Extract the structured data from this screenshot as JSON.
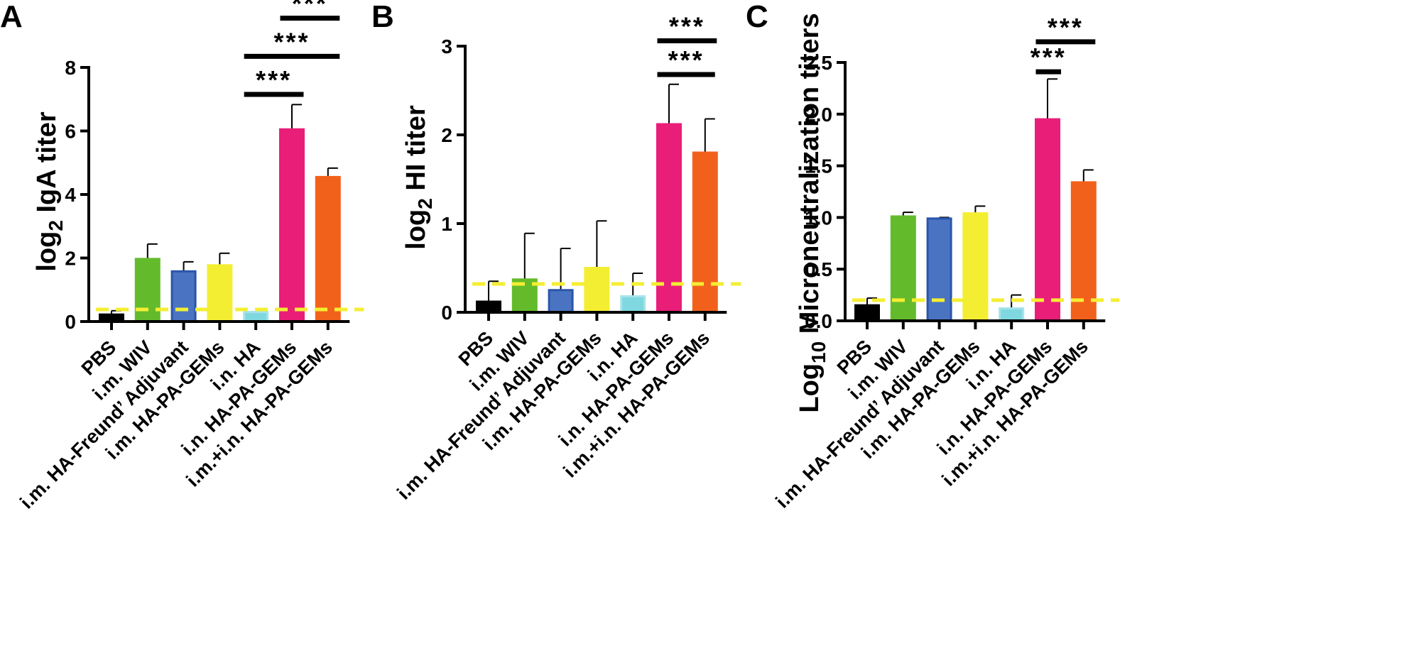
{
  "categories": [
    "PBS",
    "i.m. WIV",
    "i.m. HA-Freund’ Adjuvant",
    "i.m. HA-PA-GEMs",
    "i.n. HA",
    "i.n. HA-PA-GEMs",
    "i.m.+i.n. HA-PA-GEMs"
  ],
  "colors": {
    "bars": [
      "#000000",
      "#63bb2c",
      "#4a74c2",
      "#f4ee32",
      "#7fd8e0",
      "#e91e78",
      "#f2611b"
    ],
    "bar_edges": [
      "#000000",
      "#63bb2c",
      "#2a55aa",
      "#f4ee32",
      "#a5e3ea",
      "#e91e78",
      "#f2611b"
    ],
    "threshold": "#f4ee32",
    "axis": "#000000"
  },
  "chart_data": [
    {
      "type": "bar",
      "panel": "A",
      "ylabel_main": "log",
      "ylabel_sub": "2",
      "ylabel_rest": " IgA titer",
      "ylim": [
        0,
        8
      ],
      "yticks": [
        "0",
        "2",
        "4",
        "6",
        "8"
      ],
      "tick_values": [
        0,
        2,
        4,
        6,
        8
      ],
      "values": [
        0.22,
        1.97,
        1.58,
        1.77,
        0.3,
        6.05,
        4.55
      ],
      "errors": [
        0.12,
        0.47,
        0.3,
        0.38,
        0.1,
        0.78,
        0.28
      ],
      "threshold": 0.38,
      "significance": [
        {
          "label": "***",
          "from": 4,
          "to": 5,
          "y": 7.15
        },
        {
          "label": "***",
          "from": 4,
          "to": 6,
          "y": 8.35
        },
        {
          "label": "***",
          "from": 5,
          "to": 6,
          "y": 9.55
        }
      ]
    },
    {
      "type": "bar",
      "panel": "B",
      "ylabel_main": "log",
      "ylabel_sub": "2",
      "ylabel_rest": " HI titer",
      "ylim": [
        0,
        3
      ],
      "yticks": [
        "0",
        "1",
        "2",
        "3"
      ],
      "tick_values": [
        0,
        1,
        2,
        3
      ],
      "values": [
        0.12,
        0.37,
        0.25,
        0.5,
        0.18,
        2.12,
        1.8
      ],
      "errors": [
        0.23,
        0.52,
        0.47,
        0.53,
        0.26,
        0.45,
        0.38
      ],
      "threshold": 0.32,
      "significance": [
        {
          "label": "***",
          "from": 5,
          "to": 6,
          "y": 3.06
        },
        {
          "label": "***",
          "from": 5,
          "to": 5.95,
          "y": 2.68
        }
      ]
    },
    {
      "type": "bar",
      "panel": "C",
      "ylabel_main": "Log",
      "ylabel_sub": "10",
      "ylabel_rest": " Microneutralization titers",
      "ylim": [
        0,
        2.5
      ],
      "yticks": [
        "0.0",
        "0.5",
        "1.0",
        "1.5",
        "2.0",
        "2.5"
      ],
      "tick_values": [
        0,
        0.5,
        1,
        1.5,
        2,
        2.5
      ],
      "values": [
        0.15,
        1.01,
        0.99,
        1.04,
        0.12,
        1.95,
        1.34
      ],
      "errors": [
        0.07,
        0.04,
        0.01,
        0.07,
        0.13,
        0.39,
        0.12
      ],
      "threshold": 0.2,
      "significance": [
        {
          "label": "***",
          "from": 5,
          "to": 6,
          "y": 2.7
        },
        {
          "label": "***",
          "from": 5,
          "to": 5.05,
          "y": 2.41
        }
      ]
    }
  ]
}
